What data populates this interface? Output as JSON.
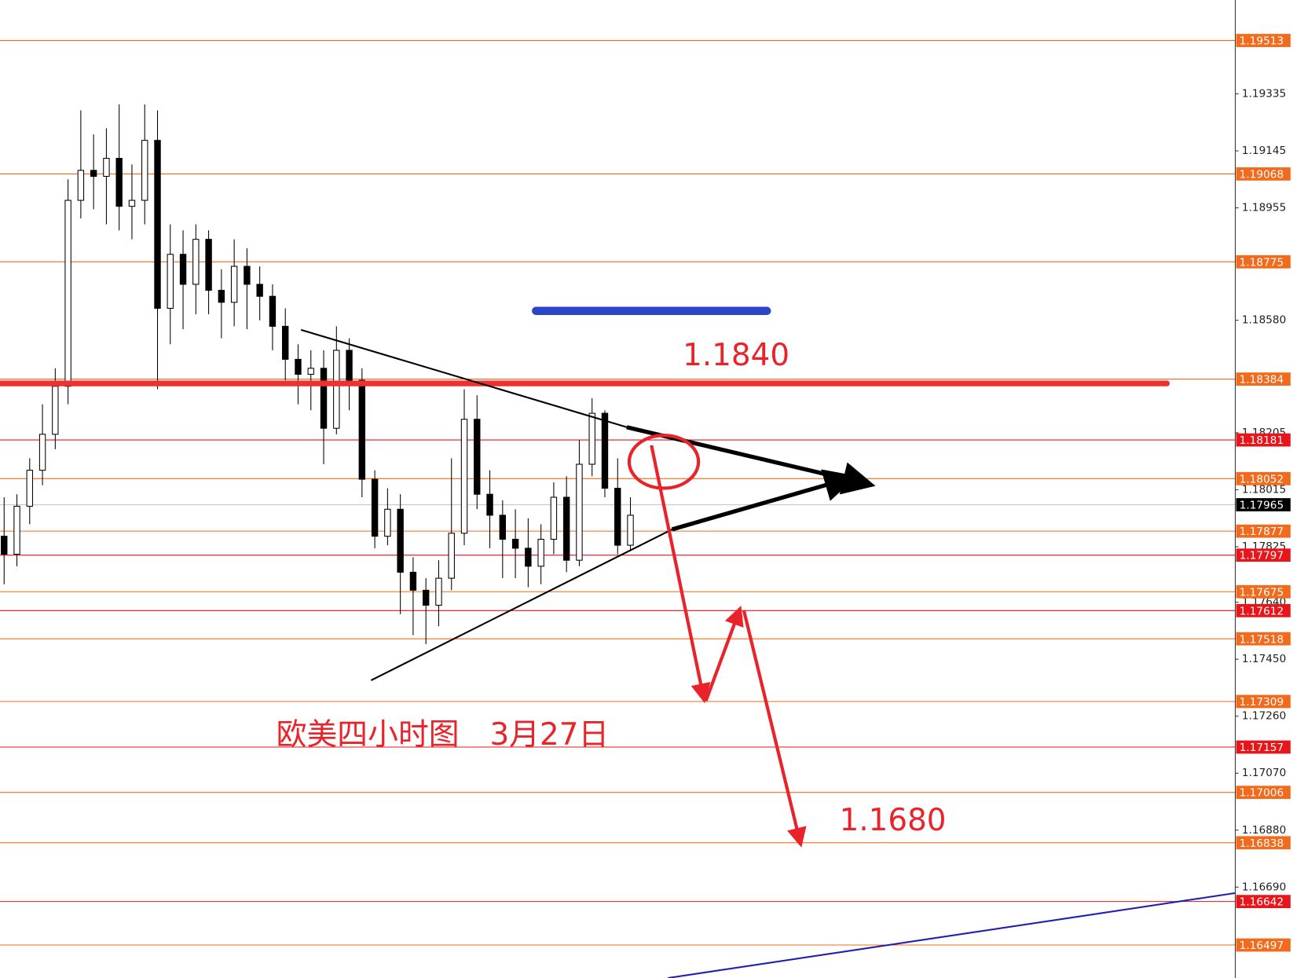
{
  "chart_data": {
    "type": "candlestick",
    "ylim": [
      1.16387,
      1.19648
    ],
    "yticks": [
      1.19335,
      1.19145,
      1.18955,
      {
        "value": 1.1858,
        "label": "1.18580"
      },
      1.18205,
      1.18015,
      1.17825,
      {
        "value": 1.1764,
        "label": "1.17640"
      },
      {
        "value": 1.1745,
        "label": "1.17450"
      },
      {
        "value": 1.1726,
        "label": "1.17260"
      },
      {
        "value": 1.1707,
        "label": "1.17070"
      },
      {
        "value": 1.1688,
        "label": "1.16880"
      },
      {
        "value": 1.1669,
        "label": "1.16690"
      }
    ],
    "levels": [
      {
        "value": 1.19513,
        "color": "#f26b1d"
      },
      {
        "value": 1.19068,
        "color": "#f26b1d"
      },
      {
        "value": 1.18775,
        "color": "#f26b1d"
      },
      {
        "value": 1.18384,
        "color": "#f26b1d"
      },
      {
        "value": 1.18181,
        "color": "#e8151b"
      },
      {
        "value": 1.18052,
        "color": "#f26b1d"
      },
      {
        "value": 1.17965,
        "color": "#000000"
      },
      {
        "value": 1.17877,
        "color": "#f26b1d"
      },
      {
        "value": 1.17797,
        "color": "#e8151b"
      },
      {
        "value": 1.17675,
        "color": "#f26b1d"
      },
      {
        "value": 1.17612,
        "color": "#e8151b"
      },
      {
        "value": 1.17518,
        "color": "#f26b1d"
      },
      {
        "value": 1.17309,
        "color": "#f26b1d"
      },
      {
        "value": 1.17157,
        "color": "#e8151b"
      },
      {
        "value": 1.17006,
        "color": "#f26b1d"
      },
      {
        "value": 1.16838,
        "color": "#f26b1d"
      },
      {
        "value": 1.16642,
        "color": "#e8151b"
      },
      {
        "value": 1.16497,
        "color": "#f26b1d"
      }
    ],
    "open": [
      1.1786,
      1.178,
      1.1796,
      1.1808,
      1.182,
      1.1836,
      1.1898,
      1.1908,
      1.1906,
      1.1912,
      1.1896,
      1.1898,
      1.1918,
      1.1862,
      1.188,
      1.187,
      1.1885,
      1.1868,
      1.1864,
      1.1876,
      1.187,
      1.1866,
      1.1856,
      1.1845,
      1.184,
      1.1842,
      1.1822,
      1.1848,
      1.1838,
      1.1805,
      1.1786,
      1.1795,
      1.1774,
      1.1768,
      1.1763,
      1.1772,
      1.1787,
      1.1825,
      1.18,
      1.1793,
      1.1785,
      1.1782,
      1.1776,
      1.1785,
      1.1799,
      1.1778,
      1.181,
      1.1827,
      1.1802,
      1.1783
    ],
    "high": [
      1.1799,
      1.18,
      1.1812,
      1.183,
      1.1842,
      1.1905,
      1.1928,
      1.192,
      1.1922,
      1.193,
      1.191,
      1.193,
      1.1928,
      1.189,
      1.1888,
      1.189,
      1.1888,
      1.1875,
      1.1885,
      1.1882,
      1.1876,
      1.187,
      1.1862,
      1.185,
      1.1848,
      1.1848,
      1.1856,
      1.1852,
      1.1842,
      1.1808,
      1.1802,
      1.18,
      1.1779,
      1.1772,
      1.1778,
      1.1812,
      1.1835,
      1.1833,
      1.1808,
      1.1798,
      1.1795,
      1.1792,
      1.179,
      1.1804,
      1.1806,
      1.1818,
      1.1832,
      1.1828,
      1.1812,
      1.1799
    ],
    "low": [
      1.177,
      1.1776,
      1.179,
      1.1803,
      1.1815,
      1.183,
      1.1892,
      1.1895,
      1.189,
      1.1888,
      1.1885,
      1.189,
      1.1835,
      1.185,
      1.1855,
      1.186,
      1.186,
      1.1852,
      1.1856,
      1.1855,
      1.1858,
      1.1848,
      1.1838,
      1.183,
      1.1828,
      1.181,
      1.182,
      1.1828,
      1.1799,
      1.1782,
      1.1783,
      1.176,
      1.1753,
      1.175,
      1.1756,
      1.1768,
      1.1783,
      1.1795,
      1.1782,
      1.1772,
      1.1772,
      1.1769,
      1.177,
      1.178,
      1.1774,
      1.1776,
      1.1806,
      1.1799,
      1.178,
      1.1781
    ],
    "close": [
      1.178,
      1.1796,
      1.1808,
      1.182,
      1.1836,
      1.1898,
      1.1908,
      1.1906,
      1.1912,
      1.1896,
      1.1898,
      1.1918,
      1.1862,
      1.188,
      1.187,
      1.1885,
      1.1868,
      1.1864,
      1.1876,
      1.187,
      1.1866,
      1.1856,
      1.1845,
      1.184,
      1.1842,
      1.1822,
      1.1848,
      1.1838,
      1.1805,
      1.1786,
      1.1795,
      1.1774,
      1.1768,
      1.1763,
      1.1772,
      1.1787,
      1.1825,
      1.18,
      1.1793,
      1.1785,
      1.1782,
      1.1776,
      1.1785,
      1.1799,
      1.1778,
      1.181,
      1.1827,
      1.1802,
      1.1783,
      1.1793
    ],
    "annotations": [
      "1.1840",
      "1.1680",
      "欧美四小时图　3月27日"
    ]
  }
}
